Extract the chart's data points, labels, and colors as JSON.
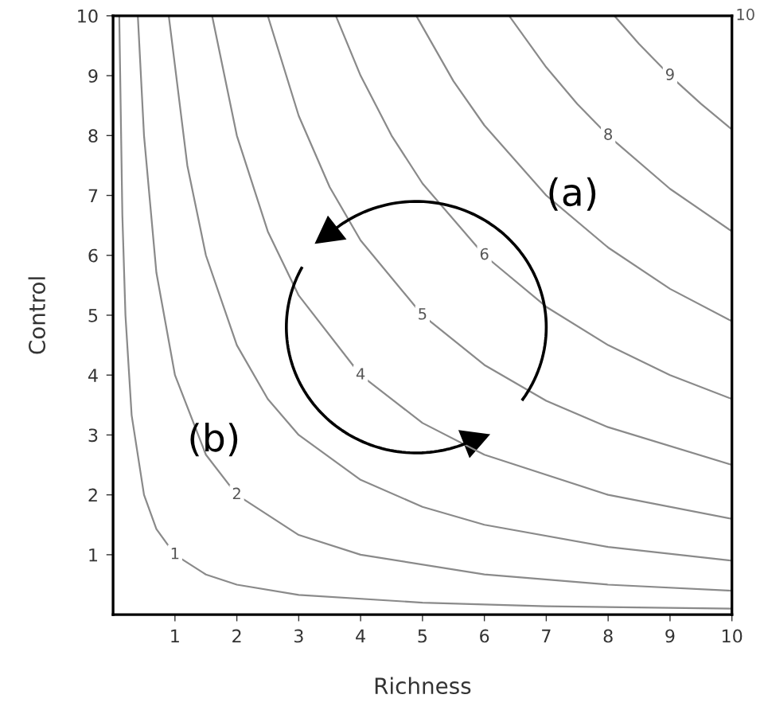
{
  "chart_data": {
    "type": "line",
    "xlabel": "Richness",
    "ylabel": "Control",
    "xlim": [
      0,
      10
    ],
    "ylim": [
      0,
      10
    ],
    "xticks": [
      1,
      2,
      3,
      4,
      5,
      6,
      7,
      8,
      9,
      10
    ],
    "yticks": [
      1,
      2,
      3,
      4,
      5,
      6,
      7,
      8,
      9,
      10
    ],
    "grid": false,
    "legend": false,
    "series": [
      {
        "name": "1",
        "color": "#8a8a8a",
        "x": [
          0.1,
          0.15,
          0.2,
          0.3,
          0.5,
          0.7,
          1,
          1.5,
          2,
          3,
          5,
          7,
          10
        ],
        "values": [
          10,
          6.67,
          5,
          3.33,
          2,
          1.43,
          1,
          0.67,
          0.5,
          0.33,
          0.2,
          0.14,
          0.1
        ]
      },
      {
        "name": "2",
        "color": "#8a8a8a",
        "x": [
          0.4,
          0.5,
          0.7,
          1,
          1.5,
          2,
          3,
          4,
          6,
          8,
          10
        ],
        "values": [
          10,
          8,
          5.71,
          4,
          2.67,
          2,
          1.33,
          1,
          0.67,
          0.5,
          0.4
        ]
      },
      {
        "color": "#8a8a8a",
        "x": [
          0.9,
          1.2,
          1.5,
          2,
          2.5,
          3,
          4,
          5,
          6,
          8,
          10
        ],
        "values": [
          10,
          7.5,
          6,
          4.5,
          3.6,
          3,
          2.25,
          1.8,
          1.5,
          1.13,
          0.9
        ]
      },
      {
        "name": "4",
        "color": "#8a8a8a",
        "x": [
          1.6,
          2,
          2.5,
          3,
          4,
          5,
          6,
          8,
          10
        ],
        "values": [
          10,
          8,
          6.4,
          5.33,
          4,
          3.2,
          2.67,
          2,
          1.6
        ]
      },
      {
        "name": "5",
        "color": "#8a8a8a",
        "x": [
          2.5,
          3,
          3.5,
          4,
          5,
          6,
          7,
          8,
          10
        ],
        "values": [
          10,
          8.33,
          7.14,
          6.25,
          5,
          4.17,
          3.57,
          3.13,
          2.5
        ]
      },
      {
        "name": "6",
        "color": "#8a8a8a",
        "x": [
          3.6,
          4,
          4.5,
          5,
          6,
          7,
          8,
          9,
          10
        ],
        "values": [
          10,
          9,
          8,
          7.2,
          6,
          5.14,
          4.5,
          4,
          3.6
        ]
      },
      {
        "color": "#8a8a8a",
        "x": [
          4.9,
          5.5,
          6,
          7,
          8,
          9,
          10
        ],
        "values": [
          10,
          8.91,
          8.17,
          7,
          6.13,
          5.44,
          4.9
        ]
      },
      {
        "name": "8",
        "color": "#8a8a8a",
        "x": [
          6.4,
          7,
          7.5,
          8,
          9,
          10
        ],
        "values": [
          10,
          9.14,
          8.53,
          8,
          7.11,
          6.4
        ]
      },
      {
        "name": "9",
        "color": "#8a8a8a",
        "x": [
          8.1,
          8.5,
          9,
          9.5,
          10
        ],
        "values": [
          10,
          9.53,
          9,
          8.53,
          8.1
        ]
      }
    ],
    "annotations": [
      "(a)",
      "(b)",
      "10"
    ]
  }
}
